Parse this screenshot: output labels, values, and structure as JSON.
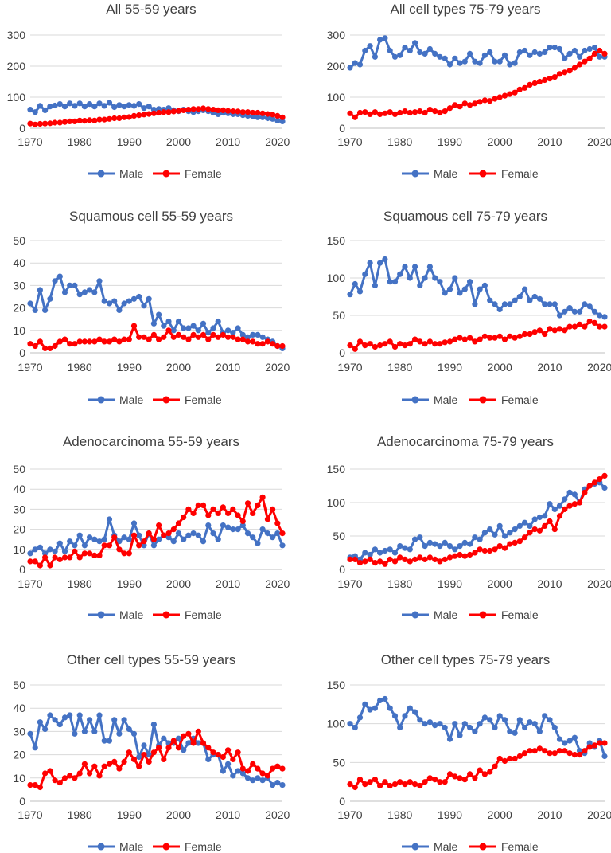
{
  "legend": {
    "male": "Male",
    "female": "Female"
  },
  "colors": {
    "male": "#4472c4",
    "female": "#ff0000",
    "grid": "#d9d9d9",
    "text": "#404040"
  },
  "chart_data": [
    {
      "type": "line",
      "title": "All 55-59 years",
      "x_start": 1970,
      "x_end": 2021,
      "xticks": [
        1970,
        1980,
        1990,
        2000,
        2010,
        2020
      ],
      "ylim": [
        0,
        300
      ],
      "yticks": [
        0,
        100,
        200,
        300
      ],
      "grid": true,
      "legend_position": "bottom",
      "series": [
        {
          "name": "Male",
          "values": [
            60,
            52,
            72,
            58,
            70,
            73,
            78,
            70,
            80,
            72,
            80,
            70,
            78,
            70,
            80,
            72,
            82,
            68,
            75,
            70,
            75,
            72,
            78,
            65,
            70,
            60,
            62,
            60,
            65,
            58,
            55,
            60,
            55,
            52,
            55,
            58,
            55,
            50,
            45,
            50,
            48,
            45,
            45,
            42,
            40,
            38,
            35,
            35,
            32,
            30,
            25,
            22
          ]
        },
        {
          "name": "Female",
          "values": [
            15,
            12,
            14,
            15,
            16,
            18,
            18,
            20,
            22,
            22,
            25,
            24,
            26,
            25,
            28,
            28,
            30,
            32,
            32,
            35,
            36,
            40,
            42,
            44,
            46,
            48,
            50,
            52,
            52,
            54,
            56,
            58,
            60,
            62,
            62,
            64,
            62,
            60,
            58,
            58,
            56,
            55,
            54,
            52,
            52,
            50,
            50,
            48,
            46,
            44,
            40,
            35
          ]
        }
      ]
    },
    {
      "type": "line",
      "title": "All cell types 75-79 years",
      "x_start": 1970,
      "x_end": 2021,
      "xticks": [
        1970,
        1980,
        1990,
        2000,
        2010,
        2020
      ],
      "ylim": [
        0,
        300
      ],
      "yticks": [
        0,
        100,
        200,
        300
      ],
      "grid": true,
      "legend_position": "bottom",
      "series": [
        {
          "name": "Male",
          "values": [
            195,
            210,
            205,
            250,
            265,
            230,
            285,
            290,
            250,
            230,
            235,
            260,
            250,
            275,
            245,
            240,
            255,
            240,
            230,
            225,
            205,
            225,
            210,
            215,
            240,
            215,
            210,
            235,
            245,
            215,
            215,
            235,
            205,
            210,
            245,
            250,
            235,
            245,
            240,
            245,
            260,
            260,
            255,
            225,
            240,
            250,
            230,
            250,
            255,
            260,
            230,
            230
          ]
        },
        {
          "name": "Female",
          "values": [
            48,
            35,
            50,
            52,
            45,
            52,
            45,
            48,
            52,
            45,
            50,
            55,
            50,
            52,
            55,
            50,
            60,
            55,
            50,
            55,
            65,
            75,
            70,
            80,
            75,
            80,
            85,
            90,
            88,
            95,
            100,
            105,
            110,
            115,
            125,
            130,
            140,
            145,
            150,
            155,
            160,
            165,
            175,
            180,
            185,
            195,
            205,
            215,
            225,
            240,
            250,
            240
          ]
        }
      ]
    },
    {
      "type": "line",
      "title": "Squamous cell 55-59 years",
      "x_start": 1970,
      "x_end": 2021,
      "xticks": [
        1970,
        1980,
        1990,
        2000,
        2010,
        2020
      ],
      "ylim": [
        0,
        50
      ],
      "yticks": [
        0,
        10,
        20,
        30,
        40,
        50
      ],
      "grid": true,
      "legend_position": "bottom",
      "series": [
        {
          "name": "Male",
          "values": [
            22,
            19,
            28,
            19,
            24,
            32,
            34,
            27,
            30,
            30,
            26,
            27,
            28,
            27,
            32,
            23,
            22,
            23,
            19,
            22,
            23,
            24,
            25,
            21,
            24,
            13,
            17,
            12,
            14,
            10,
            14,
            11,
            11,
            12,
            10,
            13,
            9,
            11,
            14,
            9,
            10,
            9,
            11,
            8,
            7,
            8,
            8,
            7,
            6,
            5,
            3,
            2
          ]
        },
        {
          "name": "Female",
          "values": [
            4,
            3,
            5,
            2,
            2,
            3,
            5,
            6,
            4,
            4,
            5,
            5,
            5,
            5,
            6,
            5,
            5,
            6,
            5,
            6,
            6,
            12,
            7,
            7,
            6,
            8,
            6,
            7,
            10,
            7,
            8,
            7,
            6,
            8,
            7,
            8,
            6,
            8,
            7,
            8,
            7,
            7,
            6,
            6,
            5,
            5,
            4,
            4,
            5,
            4,
            3,
            3
          ]
        }
      ]
    },
    {
      "type": "line",
      "title": "Squamous cell 75-79 years",
      "x_start": 1970,
      "x_end": 2021,
      "xticks": [
        1970,
        1980,
        1990,
        2000,
        2010,
        2020
      ],
      "ylim": [
        0,
        150
      ],
      "yticks": [
        0,
        50,
        100,
        150
      ],
      "grid": true,
      "legend_position": "bottom",
      "series": [
        {
          "name": "Male",
          "values": [
            78,
            92,
            82,
            105,
            120,
            90,
            120,
            125,
            95,
            95,
            105,
            115,
            100,
            115,
            90,
            100,
            115,
            100,
            95,
            80,
            85,
            100,
            80,
            85,
            95,
            65,
            85,
            90,
            70,
            65,
            58,
            65,
            65,
            70,
            75,
            85,
            70,
            75,
            72,
            65,
            65,
            65,
            50,
            55,
            60,
            55,
            55,
            65,
            62,
            55,
            50,
            48
          ]
        },
        {
          "name": "Female",
          "values": [
            10,
            5,
            15,
            10,
            12,
            8,
            10,
            12,
            15,
            8,
            12,
            10,
            12,
            18,
            15,
            12,
            15,
            12,
            12,
            14,
            15,
            18,
            20,
            18,
            20,
            15,
            18,
            22,
            20,
            20,
            22,
            18,
            22,
            20,
            22,
            25,
            25,
            28,
            30,
            25,
            32,
            30,
            32,
            30,
            35,
            35,
            38,
            35,
            42,
            40,
            35,
            35
          ]
        }
      ]
    },
    {
      "type": "line",
      "title": "Adenocarcinoma 55-59 years",
      "x_start": 1970,
      "x_end": 2021,
      "xticks": [
        1970,
        1980,
        1990,
        2000,
        2010,
        2020
      ],
      "ylim": [
        0,
        50
      ],
      "yticks": [
        0,
        10,
        20,
        30,
        40,
        50
      ],
      "grid": true,
      "legend_position": "bottom",
      "series": [
        {
          "name": "Male",
          "values": [
            8,
            10,
            11,
            8,
            10,
            9,
            13,
            9,
            14,
            12,
            17,
            12,
            16,
            15,
            14,
            15,
            25,
            17,
            14,
            16,
            15,
            23,
            17,
            12,
            18,
            12,
            15,
            17,
            16,
            14,
            18,
            15,
            17,
            18,
            17,
            14,
            22,
            18,
            15,
            22,
            21,
            20,
            20,
            22,
            18,
            16,
            13,
            20,
            18,
            16,
            18,
            12
          ]
        },
        {
          "name": "Female",
          "values": [
            4,
            4,
            2,
            6,
            2,
            6,
            5,
            6,
            6,
            9,
            6,
            8,
            8,
            7,
            7,
            12,
            12,
            16,
            10,
            8,
            8,
            17,
            12,
            14,
            18,
            15,
            22,
            17,
            18,
            20,
            23,
            26,
            30,
            28,
            32,
            32,
            27,
            30,
            28,
            31,
            28,
            30,
            27,
            24,
            33,
            28,
            32,
            36,
            25,
            30,
            23,
            18
          ]
        }
      ]
    },
    {
      "type": "line",
      "title": "Adenocarcinoma 75-79 years",
      "x_start": 1970,
      "x_end": 2021,
      "xticks": [
        1970,
        1980,
        1990,
        2000,
        2010,
        2020
      ],
      "ylim": [
        0,
        150
      ],
      "yticks": [
        0,
        50,
        100,
        150
      ],
      "grid": true,
      "legend_position": "bottom",
      "series": [
        {
          "name": "Male",
          "values": [
            18,
            20,
            15,
            25,
            22,
            30,
            25,
            28,
            30,
            25,
            35,
            32,
            30,
            45,
            48,
            35,
            40,
            38,
            35,
            40,
            35,
            30,
            35,
            40,
            38,
            48,
            45,
            55,
            60,
            52,
            65,
            50,
            55,
            60,
            65,
            70,
            65,
            75,
            78,
            80,
            98,
            90,
            95,
            105,
            115,
            112,
            100,
            120,
            125,
            128,
            130,
            122
          ]
        },
        {
          "name": "Female",
          "values": [
            15,
            15,
            10,
            12,
            15,
            10,
            12,
            8,
            15,
            12,
            18,
            15,
            12,
            15,
            18,
            15,
            18,
            15,
            12,
            15,
            18,
            20,
            22,
            20,
            22,
            25,
            30,
            28,
            28,
            30,
            35,
            32,
            38,
            40,
            42,
            48,
            55,
            60,
            58,
            65,
            72,
            60,
            80,
            90,
            95,
            98,
            100,
            115,
            125,
            130,
            135,
            140
          ]
        }
      ]
    },
    {
      "type": "line",
      "title": "Other cell types 55-59 years",
      "x_start": 1970,
      "x_end": 2021,
      "xticks": [
        1970,
        1980,
        1990,
        2000,
        2010,
        2020
      ],
      "ylim": [
        0,
        50
      ],
      "yticks": [
        0,
        10,
        20,
        30,
        40,
        50
      ],
      "grid": true,
      "legend_position": "bottom",
      "series": [
        {
          "name": "Male",
          "values": [
            29,
            23,
            34,
            31,
            37,
            35,
            33,
            36,
            37,
            29,
            37,
            30,
            35,
            30,
            37,
            26,
            26,
            35,
            29,
            35,
            31,
            29,
            19,
            24,
            20,
            33,
            24,
            27,
            25,
            25,
            27,
            22,
            25,
            27,
            25,
            25,
            18,
            20,
            20,
            13,
            16,
            11,
            13,
            12,
            10,
            9,
            10,
            9,
            10,
            7,
            8,
            7
          ]
        },
        {
          "name": "Female",
          "values": [
            7,
            7,
            6,
            12,
            13,
            9,
            8,
            10,
            11,
            10,
            12,
            16,
            12,
            15,
            11,
            15,
            16,
            17,
            14,
            17,
            21,
            18,
            15,
            20,
            17,
            21,
            23,
            18,
            23,
            26,
            23,
            28,
            29,
            25,
            30,
            25,
            23,
            21,
            20,
            19,
            22,
            18,
            21,
            14,
            13,
            16,
            14,
            12,
            11,
            14,
            15,
            14
          ]
        }
      ]
    },
    {
      "type": "line",
      "title": "Other cell types 75-79 years",
      "x_start": 1970,
      "x_end": 2021,
      "xticks": [
        1970,
        1980,
        1990,
        2000,
        2010,
        2020
      ],
      "ylim": [
        0,
        150
      ],
      "yticks": [
        0,
        50,
        100,
        150
      ],
      "grid": true,
      "legend_position": "bottom",
      "series": [
        {
          "name": "Male",
          "values": [
            100,
            95,
            108,
            125,
            118,
            120,
            130,
            132,
            120,
            110,
            95,
            110,
            120,
            115,
            105,
            100,
            102,
            98,
            100,
            95,
            80,
            100,
            85,
            100,
            95,
            90,
            100,
            108,
            105,
            95,
            110,
            105,
            90,
            88,
            105,
            95,
            102,
            100,
            90,
            110,
            105,
            95,
            80,
            75,
            78,
            82,
            65,
            62,
            75,
            70,
            78,
            58
          ]
        },
        {
          "name": "Female",
          "values": [
            22,
            18,
            28,
            22,
            25,
            28,
            20,
            25,
            20,
            22,
            25,
            22,
            25,
            22,
            20,
            25,
            30,
            28,
            25,
            25,
            35,
            32,
            30,
            28,
            35,
            30,
            40,
            35,
            38,
            45,
            55,
            52,
            55,
            55,
            58,
            62,
            65,
            65,
            68,
            65,
            62,
            62,
            65,
            65,
            62,
            60,
            60,
            65,
            70,
            72,
            75,
            75
          ]
        }
      ]
    }
  ]
}
